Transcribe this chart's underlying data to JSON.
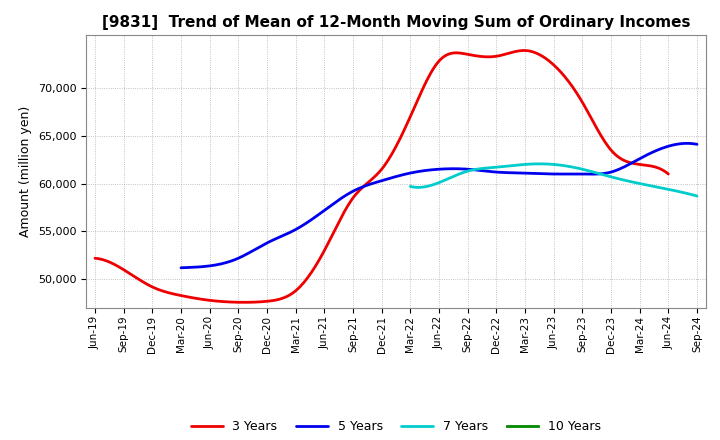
{
  "title": "[9831]  Trend of Mean of 12-Month Moving Sum of Ordinary Incomes",
  "ylabel": "Amount (million yen)",
  "ylim": [
    47000,
    75500
  ],
  "yticks": [
    50000,
    55000,
    60000,
    65000,
    70000
  ],
  "background_color": "#ffffff",
  "grid_color": "#b0b0b0",
  "x_labels": [
    "Jun-19",
    "Sep-19",
    "Dec-19",
    "Mar-20",
    "Jun-20",
    "Sep-20",
    "Dec-20",
    "Mar-21",
    "Jun-21",
    "Sep-21",
    "Dec-21",
    "Mar-22",
    "Jun-22",
    "Sep-22",
    "Dec-22",
    "Mar-23",
    "Jun-23",
    "Sep-23",
    "Dec-23",
    "Mar-24",
    "Jun-24",
    "Sep-24"
  ],
  "series": {
    "3 Years": {
      "color": "#ee0000",
      "data": [
        52200,
        51000,
        49200,
        48300,
        47800,
        47600,
        47700,
        48800,
        53000,
        58500,
        61500,
        67000,
        72800,
        73500,
        73300,
        73900,
        72400,
        68500,
        63500,
        62000,
        61000,
        null
      ]
    },
    "5 Years": {
      "color": "#0000ee",
      "data": [
        null,
        null,
        null,
        51200,
        51400,
        52200,
        53800,
        55200,
        57200,
        59200,
        60300,
        61100,
        61500,
        61500,
        61200,
        61100,
        61000,
        61000,
        61200,
        62600,
        63900,
        64100
      ]
    },
    "7 Years": {
      "color": "#00cccc",
      "data": [
        null,
        null,
        null,
        null,
        null,
        null,
        null,
        null,
        null,
        null,
        null,
        59700,
        60100,
        61300,
        61700,
        62000,
        62000,
        61500,
        60700,
        60000,
        59400,
        58700
      ]
    },
    "10 Years": {
      "color": "#008800",
      "data": [
        null,
        null,
        null,
        null,
        null,
        null,
        null,
        null,
        null,
        null,
        null,
        null,
        null,
        null,
        null,
        null,
        null,
        null,
        null,
        null,
        null,
        null
      ]
    }
  },
  "legend_order": [
    "3 Years",
    "5 Years",
    "7 Years",
    "10 Years"
  ]
}
